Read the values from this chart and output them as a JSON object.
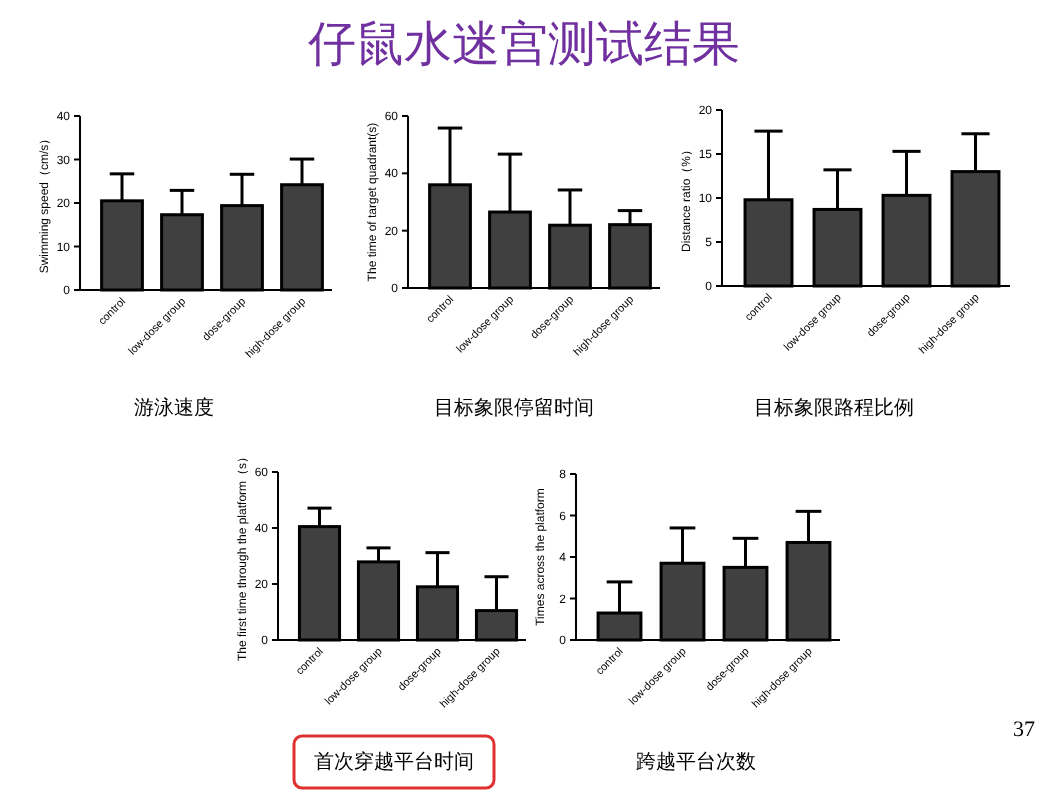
{
  "chart_data": [
    {
      "type": "bar",
      "ylabel": "Swimming speed（cm/s）",
      "xlabel": "游泳速度",
      "categories": [
        "control",
        "low-dose group",
        "dose-group",
        "high-dose group"
      ],
      "values": [
        20.5,
        17.3,
        19.4,
        24.2
      ],
      "errors": [
        [
          20.5,
          26.7
        ],
        [
          17.3,
          22.9
        ],
        [
          19.4,
          26.6
        ],
        [
          24.2,
          30.1
        ]
      ],
      "color": "#404040",
      "ylim": [
        0,
        40
      ],
      "yticks": [
        0,
        10,
        20,
        30,
        40
      ]
    },
    {
      "type": "bar",
      "title": "仔鼠水迷宫测试结果",
      "ylabel": "The time of target quadrant(s)",
      "xlabel": "目标象限停留时间",
      "categories": [
        "control",
        "low-dose group",
        "dose-group",
        "high-dose group"
      ],
      "values": [
        36,
        26.5,
        21.9,
        22.1
      ],
      "errors": [
        [
          36,
          55.8
        ],
        [
          26.5,
          46.7
        ],
        [
          21.9,
          34.2
        ],
        [
          22.1,
          27
        ]
      ],
      "color": "#404040",
      "ylim": [
        0,
        60
      ],
      "yticks": [
        0,
        20,
        40,
        60
      ]
    },
    {
      "type": "bar",
      "ylabel": "Distance ratio（%）",
      "xlabel": "目标象限路程比例",
      "categories": [
        "control",
        "low-dose group",
        "dose-group",
        "high-dose group"
      ],
      "values": [
        9.8,
        8.7,
        10.3,
        13
      ],
      "errors": [
        [
          9.8,
          17.6
        ],
        [
          8.7,
          13.2
        ],
        [
          10.3,
          15.3
        ],
        [
          13,
          17.3
        ]
      ],
      "color": "#404040",
      "ylim": [
        0,
        20
      ],
      "yticks": [
        0,
        5,
        10,
        15,
        20
      ]
    },
    {
      "type": "bar",
      "ylabel": "The first time through the platform（s）",
      "xlabel": "首次穿越平台时间",
      "categories": [
        "control",
        "low-dose group",
        "dose-group",
        "high-dose group"
      ],
      "values": [
        40.5,
        27.9,
        19,
        10.5
      ],
      "errors": [
        [
          40.5,
          47.1
        ],
        [
          27.9,
          32.9
        ],
        [
          19,
          31.2
        ],
        [
          10.5,
          22.6
        ]
      ],
      "color": "#404040",
      "ylim": [
        0,
        60
      ],
      "yticks": [
        0,
        20,
        40,
        60
      ]
    },
    {
      "type": "bar",
      "ylabel": "Times across the platform",
      "xlabel": "跨越平台次数",
      "annotations": [
        "37"
      ],
      "categories": [
        "control",
        "low-dose group",
        "dose-group",
        "high-dose group"
      ],
      "values": [
        1.3,
        3.7,
        3.5,
        4.7
      ],
      "errors": [
        [
          1.3,
          2.8
        ],
        [
          3.7,
          5.4
        ],
        [
          3.5,
          4.9
        ],
        [
          4.7,
          6.2
        ]
      ],
      "color": "#404040",
      "ylim": [
        0,
        8
      ],
      "yticks": [
        0,
        2,
        4,
        6,
        8
      ]
    }
  ]
}
